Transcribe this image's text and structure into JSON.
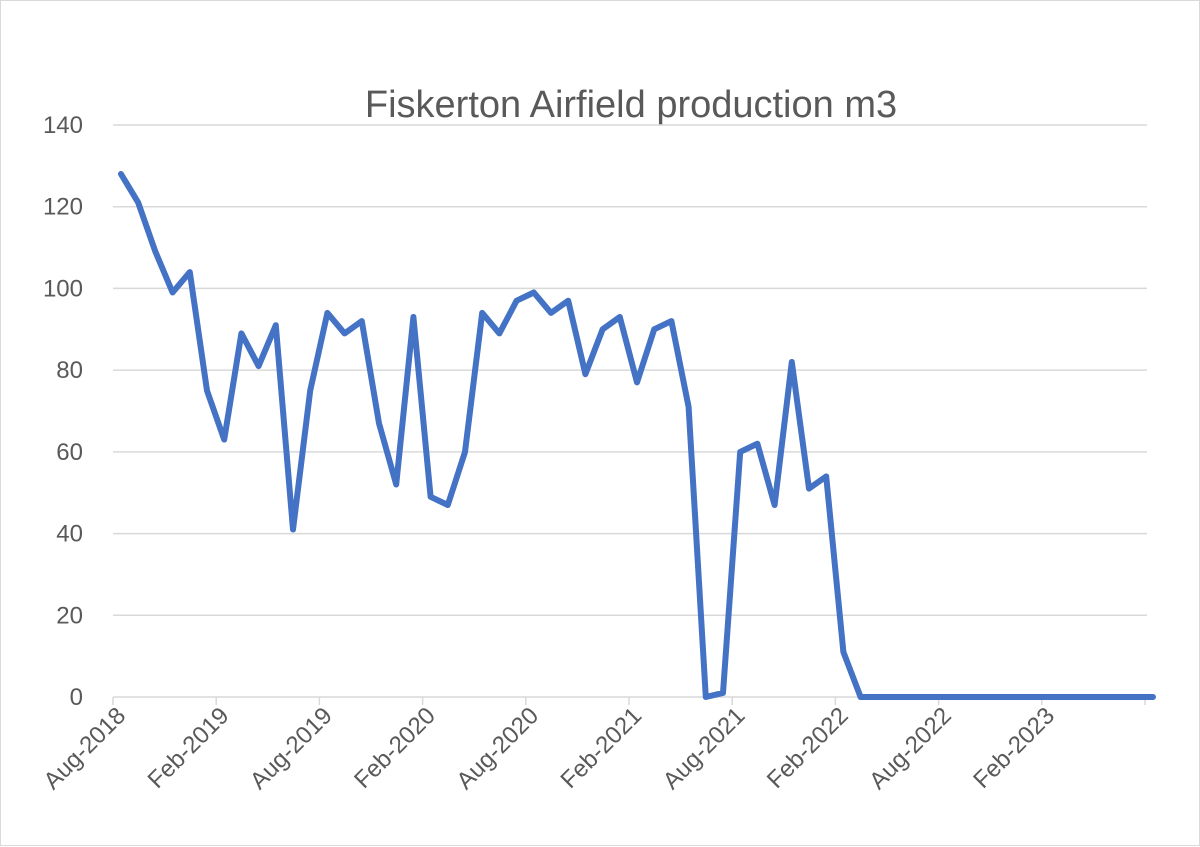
{
  "chart_data": {
    "type": "line",
    "title": "Fiskerton Airfield production m3",
    "xlabel": "",
    "ylabel": "",
    "ylim": [
      0,
      140
    ],
    "yticks": [
      0,
      20,
      40,
      60,
      80,
      100,
      120,
      140
    ],
    "x_tick_labels": [
      "Aug-2018",
      "Feb-2019",
      "Aug-2019",
      "Feb-2020",
      "Aug-2020",
      "Feb-2021",
      "Aug-2021",
      "Feb-2022",
      "Aug-2022",
      "Feb-2023"
    ],
    "grid": true,
    "legend": "none",
    "series_color": "#4472c4",
    "x": [
      "Aug-2018",
      "Sep-2018",
      "Oct-2018",
      "Nov-2018",
      "Dec-2018",
      "Jan-2019",
      "Feb-2019",
      "Mar-2019",
      "Apr-2019",
      "May-2019",
      "Jun-2019",
      "Jul-2019",
      "Aug-2019",
      "Sep-2019",
      "Oct-2019",
      "Nov-2019",
      "Dec-2019",
      "Jan-2020",
      "Feb-2020",
      "Mar-2020",
      "Apr-2020",
      "May-2020",
      "Jun-2020",
      "Jul-2020",
      "Aug-2020",
      "Sep-2020",
      "Oct-2020",
      "Nov-2020",
      "Dec-2020",
      "Jan-2021",
      "Feb-2021",
      "Mar-2021",
      "Apr-2021",
      "May-2021",
      "Jun-2021",
      "Jul-2021",
      "Aug-2021",
      "Sep-2021",
      "Oct-2021",
      "Nov-2021",
      "Dec-2021",
      "Jan-2022",
      "Feb-2022",
      "Mar-2022",
      "Apr-2022",
      "May-2022",
      "Jun-2022",
      "Jul-2022",
      "Aug-2022",
      "Sep-2022",
      "Oct-2022",
      "Nov-2022",
      "Dec-2022",
      "Jan-2023",
      "Feb-2023",
      "Mar-2023",
      "Apr-2023",
      "May-2023",
      "Jun-2023",
      "Jul-2023",
      "Aug-2023"
    ],
    "series": [
      {
        "values": [
          128,
          121,
          109,
          99,
          104,
          75,
          63,
          89,
          81,
          91,
          41,
          75,
          94,
          89,
          92,
          67,
          52,
          93,
          49,
          47,
          60,
          94,
          89,
          97,
          99,
          94,
          97,
          79,
          90,
          93,
          77,
          90,
          92,
          71,
          0,
          1,
          60,
          62,
          47,
          82,
          51,
          54,
          11,
          0,
          0,
          0,
          0,
          0,
          0,
          0,
          0,
          0,
          0,
          0,
          0,
          0,
          0,
          0,
          0,
          0,
          0
        ]
      }
    ]
  }
}
